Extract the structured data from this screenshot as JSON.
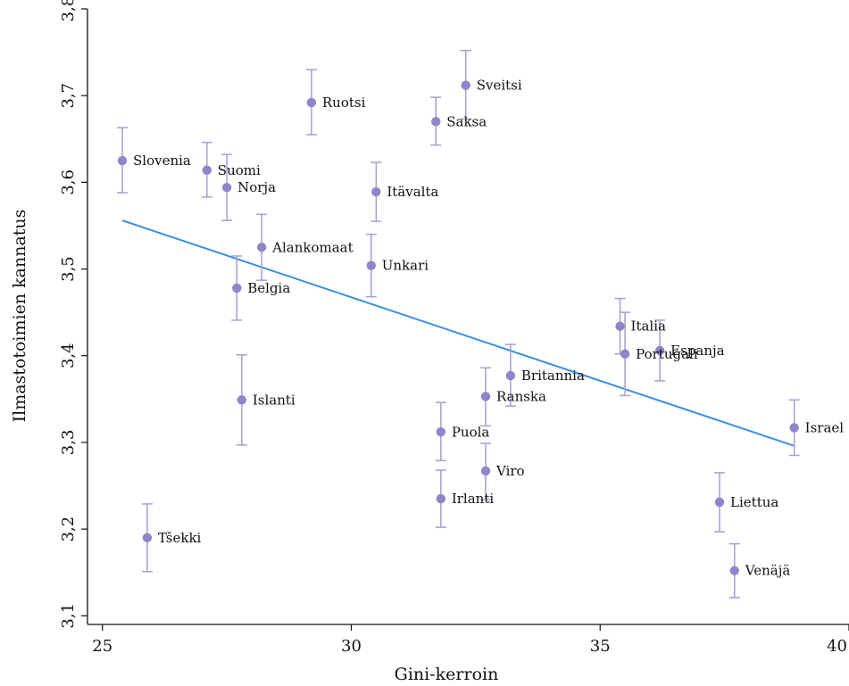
{
  "chart_data": {
    "type": "scatter",
    "title": "",
    "xlabel": "Gini-kerroin",
    "ylabel": "Ilmastotoimien kannatus",
    "xlim": [
      24.7,
      40
    ],
    "ylim": [
      3.09,
      3.8
    ],
    "xticks": [
      25,
      30,
      35,
      40
    ],
    "xtick_labels": [
      "25",
      "30",
      "35",
      "40"
    ],
    "yticks": [
      3.1,
      3.2,
      3.3,
      3.4,
      3.5,
      3.6,
      3.7,
      3.8
    ],
    "ytick_labels": [
      "3,1",
      "3,2",
      "3,3",
      "3,4",
      "3,5",
      "3,6",
      "3,7",
      "3,8"
    ],
    "grid": false,
    "colors": {
      "points": "#8e86c9",
      "errorbars": "#a49ed3",
      "fit_line": "#3a8fe0",
      "axes": "#111111"
    },
    "points": [
      {
        "label": "Slovenia",
        "x": 25.4,
        "y": 3.625,
        "ylow": 3.588,
        "yhigh": 3.663
      },
      {
        "label": "Suomi",
        "x": 27.1,
        "y": 3.614,
        "ylow": 3.583,
        "yhigh": 3.646
      },
      {
        "label": "Norja",
        "x": 27.5,
        "y": 3.594,
        "ylow": 3.556,
        "yhigh": 3.632
      },
      {
        "label": "Ruotsi",
        "x": 29.2,
        "y": 3.692,
        "ylow": 3.655,
        "yhigh": 3.73
      },
      {
        "label": "Saksa",
        "x": 31.7,
        "y": 3.67,
        "ylow": 3.643,
        "yhigh": 3.698
      },
      {
        "label": "Sveitsi",
        "x": 32.3,
        "y": 3.712,
        "ylow": 3.673,
        "yhigh": 3.752
      },
      {
        "label": "Itävalta",
        "x": 30.5,
        "y": 3.589,
        "ylow": 3.555,
        "yhigh": 3.623
      },
      {
        "label": "Alankomaat",
        "x": 28.2,
        "y": 3.525,
        "ylow": 3.487,
        "yhigh": 3.563
      },
      {
        "label": "Unkari",
        "x": 30.4,
        "y": 3.504,
        "ylow": 3.468,
        "yhigh": 3.54
      },
      {
        "label": "Belgia",
        "x": 27.7,
        "y": 3.478,
        "ylow": 3.441,
        "yhigh": 3.515
      },
      {
        "label": "Islanti",
        "x": 27.8,
        "y": 3.349,
        "ylow": 3.297,
        "yhigh": 3.401
      },
      {
        "label": "Tšekki",
        "x": 25.9,
        "y": 3.19,
        "ylow": 3.151,
        "yhigh": 3.229
      },
      {
        "label": "Italia",
        "x": 35.4,
        "y": 3.434,
        "ylow": 3.402,
        "yhigh": 3.466
      },
      {
        "label": "Portugali",
        "x": 35.5,
        "y": 3.402,
        "ylow": 3.354,
        "yhigh": 3.45
      },
      {
        "label": "Espanja",
        "x": 36.2,
        "y": 3.406,
        "ylow": 3.371,
        "yhigh": 3.441
      },
      {
        "label": "Britannia",
        "x": 33.2,
        "y": 3.377,
        "ylow": 3.342,
        "yhigh": 3.413
      },
      {
        "label": "Ranska",
        "x": 32.7,
        "y": 3.353,
        "ylow": 3.319,
        "yhigh": 3.386
      },
      {
        "label": "Puola",
        "x": 31.8,
        "y": 3.312,
        "ylow": 3.279,
        "yhigh": 3.346
      },
      {
        "label": "Viro",
        "x": 32.7,
        "y": 3.267,
        "ylow": 3.234,
        "yhigh": 3.299
      },
      {
        "label": "Irlanti",
        "x": 31.8,
        "y": 3.235,
        "ylow": 3.202,
        "yhigh": 3.268
      },
      {
        "label": "Israel",
        "x": 38.9,
        "y": 3.317,
        "ylow": 3.285,
        "yhigh": 3.349
      },
      {
        "label": "Liettua",
        "x": 37.4,
        "y": 3.231,
        "ylow": 3.197,
        "yhigh": 3.265
      },
      {
        "label": "Venäjä",
        "x": 37.7,
        "y": 3.152,
        "ylow": 3.121,
        "yhigh": 3.183
      }
    ],
    "fit_line": {
      "x": [
        25.4,
        38.9
      ],
      "y": [
        3.556,
        3.296
      ]
    }
  }
}
